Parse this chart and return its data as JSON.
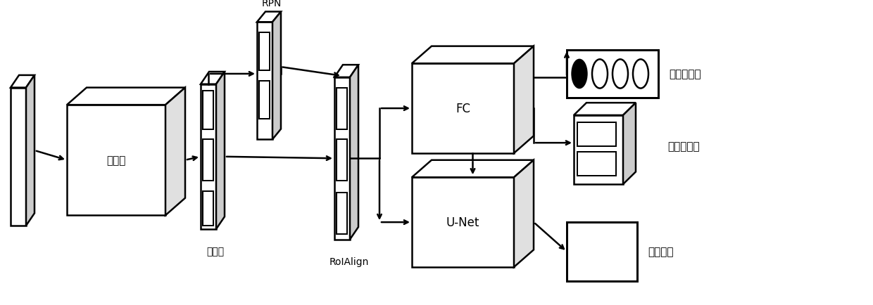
{
  "fig_width": 12.4,
  "fig_height": 4.35,
  "bg_color": "#ffffff",
  "line_color": "#000000",
  "line_width": 1.8,
  "labels": {
    "rpn": "RPN",
    "conv": "卷积层",
    "feat_map": "特征图",
    "roi_align": "RoIAlign",
    "fc": "FC",
    "unet": "U-Net",
    "dry_eye": "干眼症分级",
    "eyelid": "眼睑板定位",
    "gland": "腺泡分割"
  }
}
